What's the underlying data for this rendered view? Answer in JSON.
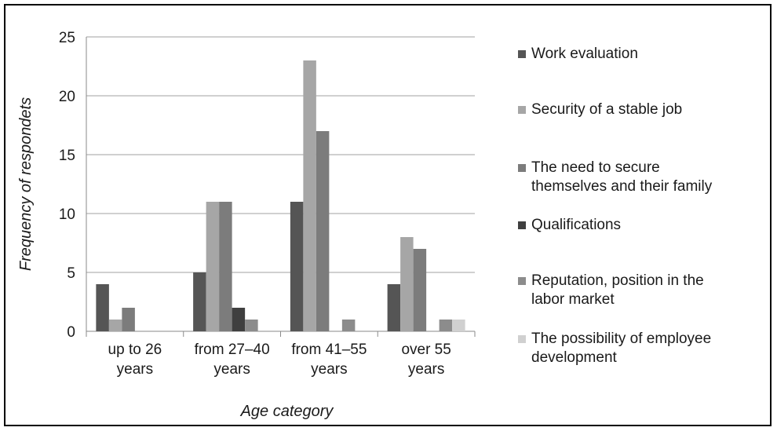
{
  "chart_data": {
    "type": "bar",
    "title": "",
    "xlabel": "Age category",
    "ylabel": "Frequency of respondets",
    "ylim": [
      0,
      25
    ],
    "yticks": [
      0,
      5,
      10,
      15,
      20,
      25
    ],
    "grid": true,
    "legend_position": "right",
    "categories": [
      [
        "up to 26",
        "years"
      ],
      [
        "from 27–40",
        "years"
      ],
      [
        "from 41–55",
        "years"
      ],
      [
        "over 55",
        "years"
      ]
    ],
    "series": [
      {
        "name": [
          "Work evaluation"
        ],
        "color": "#555555",
        "values": [
          4,
          5,
          11,
          4
        ]
      },
      {
        "name": [
          "Security of a stable job"
        ],
        "color": "#a6a6a6",
        "values": [
          1,
          11,
          23,
          8
        ]
      },
      {
        "name": [
          "The need to secure",
          "themselves and their family"
        ],
        "color": "#7c7c7c",
        "values": [
          2,
          11,
          17,
          7
        ]
      },
      {
        "name": [
          "Qualifications"
        ],
        "color": "#3f3f3f",
        "values": [
          0,
          2,
          0,
          0
        ]
      },
      {
        "name": [
          "Reputation, position in the",
          "labor market"
        ],
        "color": "#8c8c8c",
        "values": [
          0,
          1,
          1,
          1
        ]
      },
      {
        "name": [
          "The possibility of employee",
          "development"
        ],
        "color": "#d0d0d0",
        "values": [
          0,
          0,
          0,
          1
        ]
      }
    ]
  }
}
